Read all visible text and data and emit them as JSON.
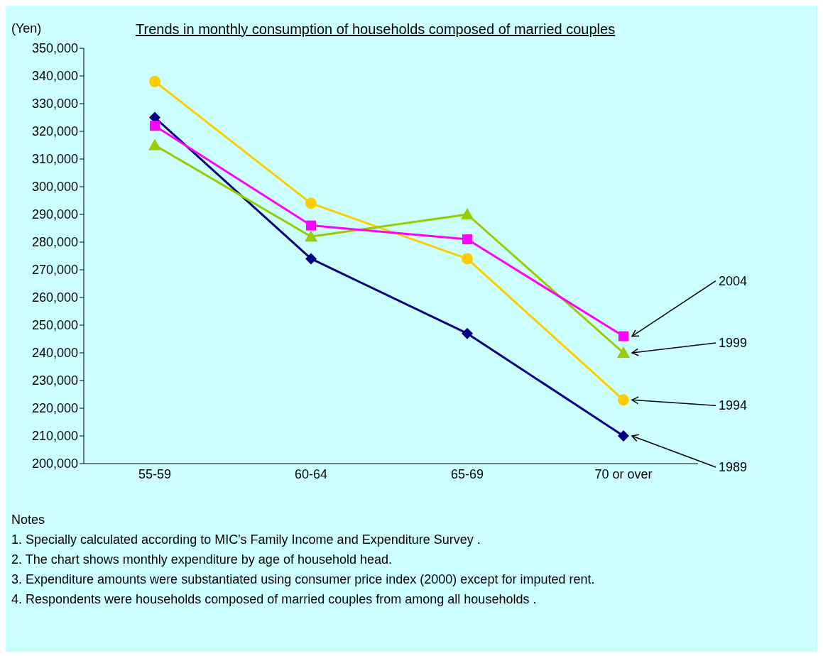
{
  "chart_data": {
    "type": "line",
    "title": "Trends in monthly consumption of households composed of married couples",
    "ylabel": "(Yen)",
    "categories": [
      "55-59",
      "60-64",
      "65-69",
      "70 or over"
    ],
    "series": [
      {
        "name": "1989",
        "color": "#000080",
        "marker": "diamond",
        "values": [
          325000,
          274000,
          247000,
          210000
        ]
      },
      {
        "name": "1994",
        "color": "#ffcc00",
        "marker": "circle",
        "values": [
          338000,
          294000,
          274000,
          223000
        ]
      },
      {
        "name": "1999",
        "color": "#99cc00",
        "marker": "triangle",
        "values": [
          315000,
          282000,
          290000,
          240000
        ]
      },
      {
        "name": "2004",
        "color": "#ff00ff",
        "marker": "square",
        "values": [
          322000,
          286000,
          281000,
          246000
        ]
      }
    ],
    "ylim": [
      200000,
      350000
    ],
    "yticks": [
      {
        "value": 200000,
        "label": "200,000"
      },
      {
        "value": 210000,
        "label": "210,000"
      },
      {
        "value": 220000,
        "label": "220,000"
      },
      {
        "value": 230000,
        "label": "230,000"
      },
      {
        "value": 240000,
        "label": "240,000"
      },
      {
        "value": 250000,
        "label": "250,000"
      },
      {
        "value": 260000,
        "label": "260,000"
      },
      {
        "value": 270000,
        "label": "270,000"
      },
      {
        "value": 280000,
        "label": "280,000"
      },
      {
        "value": 290000,
        "label": "290,000"
      },
      {
        "value": 300000,
        "label": "300,000"
      },
      {
        "value": 310000,
        "label": "310,000"
      },
      {
        "value": 320000,
        "label": "320,000"
      },
      {
        "value": 330000,
        "label": "330,000"
      },
      {
        "value": 340000,
        "label": "340,000"
      },
      {
        "value": 350000,
        "label": "350,000"
      }
    ],
    "grid": false,
    "legend": false,
    "annotations": [
      "Notes",
      "1. Specially calculated according to MIC's Family Income and Expenditure Survey .",
      "2. The chart shows monthly expenditure by age of household head.",
      "3. Expenditure amounts were substantiated using consumer price index (2000) except for imputed rent.",
      "4. Respondents were households composed of married couples from among all households ."
    ]
  }
}
